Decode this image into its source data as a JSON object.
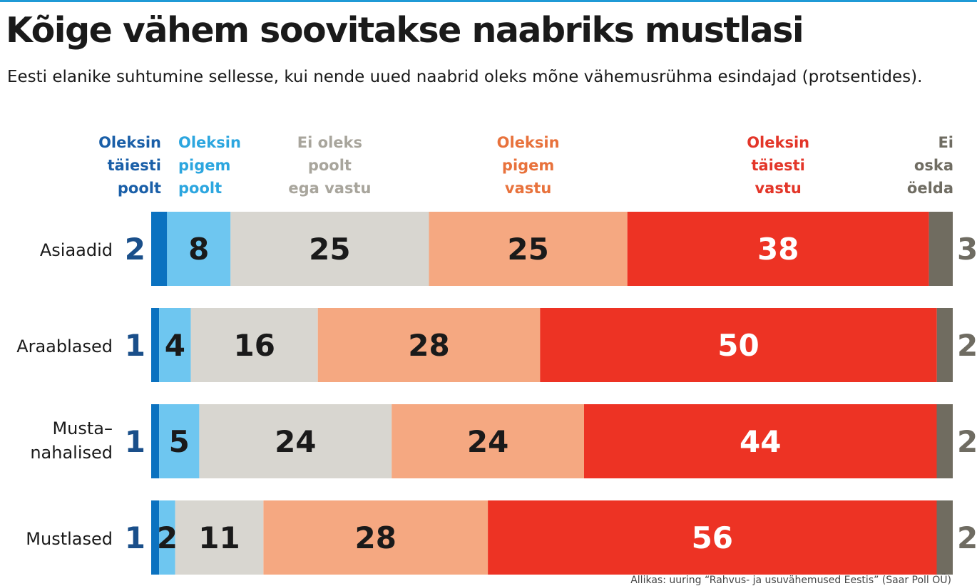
{
  "title": "Kõige vähem soovitakse naabriks mustlasi",
  "subtitle": "Eesti elanike suhtumine sellesse, kui nende uued naabrid oleks mõne vähemusrühma esindajad (protsentides).",
  "source": "Allikas: uuring “Rahvus- ja usuvähemused Eestis” (Saar Poll OÜ)",
  "colors": {
    "accent_line": "#1f9ad6",
    "text_dark": "#1a1a1a",
    "value_dark_blue": "#1a4f8a",
    "value_gray": "#6f6c62"
  },
  "chart_data": {
    "type": "bar",
    "orientation": "horizontal",
    "stacked": true,
    "unit": "%",
    "categories": [
      "Asiaadid",
      "Araablased",
      "Musta–\nnahalised",
      "Mustlased"
    ],
    "series": [
      {
        "name": "Oleksin\ntäiesti\npoolt",
        "color": "#0b72c0",
        "values": [
          2,
          1,
          1,
          1
        ]
      },
      {
        "name": "Oleksin\npigem\npoolt",
        "color": "#6ec6f0",
        "values": [
          8,
          4,
          5,
          2
        ]
      },
      {
        "name": "Ei oleks\npoolt\nega vastu",
        "color": "#d8d6d0",
        "values": [
          25,
          16,
          24,
          11
        ]
      },
      {
        "name": "Oleksin\npigem\nvastu",
        "color": "#f5a881",
        "values": [
          25,
          28,
          24,
          28
        ]
      },
      {
        "name": "Oleksin\ntäiesti\nvastu",
        "color": "#ed3324",
        "values": [
          38,
          50,
          44,
          56
        ]
      },
      {
        "name": "Ei\noska\nöelda",
        "color": "#706c60",
        "values": [
          3,
          2,
          2,
          2
        ]
      }
    ],
    "legend_text_colors": [
      "#1a5fa8",
      "#2ca6df",
      "#a8a59c",
      "#e8723c",
      "#e33629",
      "#6f6c62"
    ],
    "value_label_colors": [
      "#1a4f8a",
      "#1a1a1a",
      "#1a1a1a",
      "#1a1a1a",
      "#ffffff",
      "#6f6c62"
    ]
  }
}
